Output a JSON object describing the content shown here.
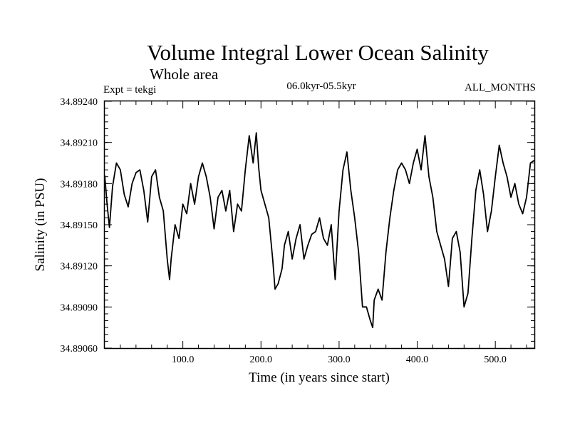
{
  "chart_data": {
    "type": "line",
    "title": "Volume Integral Lower Ocean Salinity",
    "subtitle": "Whole area",
    "experiment": "Expt = tekgi",
    "period": "06.0kyr-05.5kyr",
    "months": "ALL_MONTHS",
    "xlabel": "Time (in years since start)",
    "ylabel": "Salinity (in PSU)",
    "xlim": [
      0,
      550
    ],
    "ylim": [
      34.8906,
      34.8924
    ],
    "xticks": [
      100,
      200,
      300,
      400,
      500
    ],
    "xtick_labels": [
      "100.0",
      "200.0",
      "300.0",
      "400.0",
      "500.0"
    ],
    "yticks": [
      34.8906,
      34.8909,
      34.8912,
      34.8915,
      34.8918,
      34.8921,
      34.8924
    ],
    "ytick_labels": [
      "34.89060",
      "34.89090",
      "34.89120",
      "34.89150",
      "34.89180",
      "34.89210",
      "34.89240"
    ],
    "series": [
      {
        "name": "salinity",
        "x": [
          0,
          3,
          6,
          10,
          15,
          20,
          25,
          30,
          35,
          40,
          45,
          50,
          55,
          60,
          65,
          70,
          75,
          80,
          83,
          85,
          90,
          95,
          100,
          105,
          110,
          115,
          120,
          125,
          130,
          135,
          140,
          145,
          150,
          155,
          160,
          165,
          170,
          175,
          180,
          185,
          190,
          194,
          197,
          200,
          205,
          210,
          215,
          218,
          222,
          227,
          230,
          235,
          240,
          245,
          250,
          255,
          260,
          265,
          270,
          275,
          280,
          285,
          290,
          295,
          300,
          305,
          310,
          315,
          320,
          325,
          330,
          335,
          340,
          343,
          345,
          350,
          355,
          360,
          365,
          370,
          375,
          380,
          385,
          390,
          395,
          400,
          405,
          410,
          415,
          420,
          425,
          430,
          435,
          440,
          445,
          450,
          455,
          460,
          465,
          470,
          475,
          480,
          485,
          490,
          495,
          500,
          505,
          510,
          515,
          520,
          525,
          530,
          535,
          540,
          545,
          550
        ],
        "values": [
          34.89186,
          34.89165,
          34.89148,
          34.89178,
          34.89195,
          34.8919,
          34.89172,
          34.89163,
          34.8918,
          34.89188,
          34.8919,
          34.89175,
          34.89152,
          34.89185,
          34.8919,
          34.8917,
          34.8916,
          34.89125,
          34.8911,
          34.89125,
          34.8915,
          34.8914,
          34.89165,
          34.89158,
          34.8918,
          34.89165,
          34.89185,
          34.89195,
          34.89185,
          34.8917,
          34.89147,
          34.8917,
          34.89175,
          34.8916,
          34.89175,
          34.89145,
          34.89165,
          34.8916,
          34.8919,
          34.89215,
          34.89195,
          34.89217,
          34.89192,
          34.89175,
          34.89165,
          34.89155,
          34.89125,
          34.89103,
          34.89107,
          34.89118,
          34.89135,
          34.89145,
          34.89125,
          34.8914,
          34.8915,
          34.89125,
          34.89135,
          34.89143,
          34.89145,
          34.89155,
          34.8914,
          34.89135,
          34.8915,
          34.8911,
          34.8916,
          34.8919,
          34.89203,
          34.89175,
          34.89155,
          34.8913,
          34.8909,
          34.8909,
          34.8908,
          34.89075,
          34.89095,
          34.89103,
          34.89095,
          34.8913,
          34.89155,
          34.89175,
          34.8919,
          34.89195,
          34.8919,
          34.8918,
          34.89195,
          34.89205,
          34.8919,
          34.89215,
          34.89185,
          34.8917,
          34.89145,
          34.89135,
          34.89125,
          34.89105,
          34.8914,
          34.89145,
          34.8913,
          34.8909,
          34.891,
          34.8914,
          34.89175,
          34.8919,
          34.89172,
          34.89145,
          34.8916,
          34.89185,
          34.89208,
          34.89195,
          34.89185,
          34.8917,
          34.8918,
          34.89165,
          34.89158,
          34.8917,
          34.89195,
          34.89197
        ]
      }
    ],
    "grid": false,
    "legend": "none"
  }
}
